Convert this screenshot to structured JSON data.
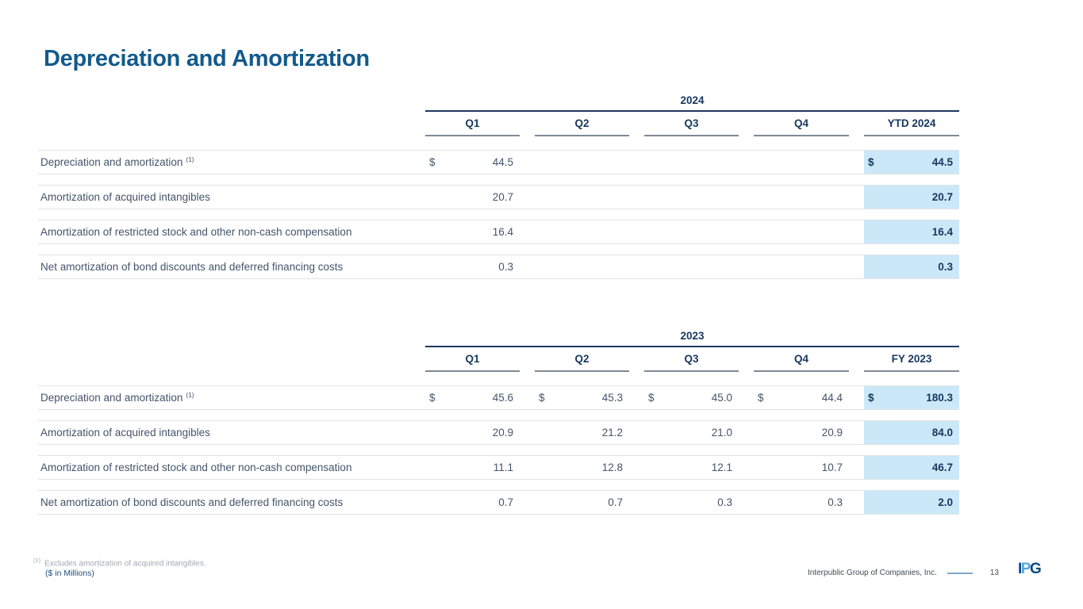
{
  "title": "Depreciation and Amortization",
  "tables": [
    {
      "year": "2024",
      "columns": [
        "Q1",
        "Q2",
        "Q3",
        "Q4",
        "YTD 2024"
      ],
      "rows": [
        {
          "label": "Depreciation and amortization",
          "sup": "(1)",
          "cells": [
            {
              "c": "$",
              "v": "44.5"
            },
            {
              "c": "",
              "v": ""
            },
            {
              "c": "",
              "v": ""
            },
            {
              "c": "",
              "v": ""
            },
            {
              "c": "$",
              "v": "44.5"
            }
          ]
        },
        {
          "label": "Amortization of acquired intangibles",
          "sup": "",
          "cells": [
            {
              "c": "",
              "v": "20.7"
            },
            {
              "c": "",
              "v": ""
            },
            {
              "c": "",
              "v": ""
            },
            {
              "c": "",
              "v": ""
            },
            {
              "c": "",
              "v": "20.7"
            }
          ]
        },
        {
          "label": "Amortization of restricted stock and other non-cash compensation",
          "sup": "",
          "cells": [
            {
              "c": "",
              "v": "16.4"
            },
            {
              "c": "",
              "v": ""
            },
            {
              "c": "",
              "v": ""
            },
            {
              "c": "",
              "v": ""
            },
            {
              "c": "",
              "v": "16.4"
            }
          ]
        },
        {
          "label": "Net amortization of bond discounts and deferred financing costs",
          "sup": "",
          "cells": [
            {
              "c": "",
              "v": "0.3"
            },
            {
              "c": "",
              "v": ""
            },
            {
              "c": "",
              "v": ""
            },
            {
              "c": "",
              "v": ""
            },
            {
              "c": "",
              "v": "0.3"
            }
          ]
        }
      ]
    },
    {
      "year": "2023",
      "columns": [
        "Q1",
        "Q2",
        "Q3",
        "Q4",
        "FY 2023"
      ],
      "rows": [
        {
          "label": "Depreciation and amortization",
          "sup": "(1)",
          "cells": [
            {
              "c": "$",
              "v": "45.6"
            },
            {
              "c": "$",
              "v": "45.3"
            },
            {
              "c": "$",
              "v": "45.0"
            },
            {
              "c": "$",
              "v": "44.4"
            },
            {
              "c": "$",
              "v": "180.3"
            }
          ]
        },
        {
          "label": "Amortization of acquired intangibles",
          "sup": "",
          "cells": [
            {
              "c": "",
              "v": "20.9"
            },
            {
              "c": "",
              "v": "21.2"
            },
            {
              "c": "",
              "v": "21.0"
            },
            {
              "c": "",
              "v": "20.9"
            },
            {
              "c": "",
              "v": "84.0"
            }
          ]
        },
        {
          "label": "Amortization of restricted stock and other non-cash compensation",
          "sup": "",
          "cells": [
            {
              "c": "",
              "v": "11.1"
            },
            {
              "c": "",
              "v": "12.8"
            },
            {
              "c": "",
              "v": "12.1"
            },
            {
              "c": "",
              "v": "10.7"
            },
            {
              "c": "",
              "v": "46.7"
            }
          ]
        },
        {
          "label": "Net amortization of bond discounts and deferred financing costs",
          "sup": "",
          "cells": [
            {
              "c": "",
              "v": "0.7"
            },
            {
              "c": "",
              "v": "0.7"
            },
            {
              "c": "",
              "v": "0.3"
            },
            {
              "c": "",
              "v": "0.3"
            },
            {
              "c": "",
              "v": "2.0"
            }
          ]
        }
      ]
    }
  ],
  "footnote": {
    "marker": "(1)",
    "text": "Excludes amortization of acquired intangibles.",
    "units": "($ in Millions)"
  },
  "footer": {
    "company": "Interpublic Group of Companies, Inc.",
    "page": "13",
    "logo": {
      "l1": "I",
      "l2": "P",
      "l3": "G"
    }
  },
  "colors": {
    "title_blue": "#135a8c",
    "header_navy": "#17375e",
    "body_text": "#44546a",
    "highlight": "#cbe8f8",
    "year_line": "#1f3864",
    "q_underline": "#7f8a95",
    "row_border": "#e0e3e7",
    "logo_dark": "#0d4a84",
    "logo_light": "#55a6d9"
  }
}
